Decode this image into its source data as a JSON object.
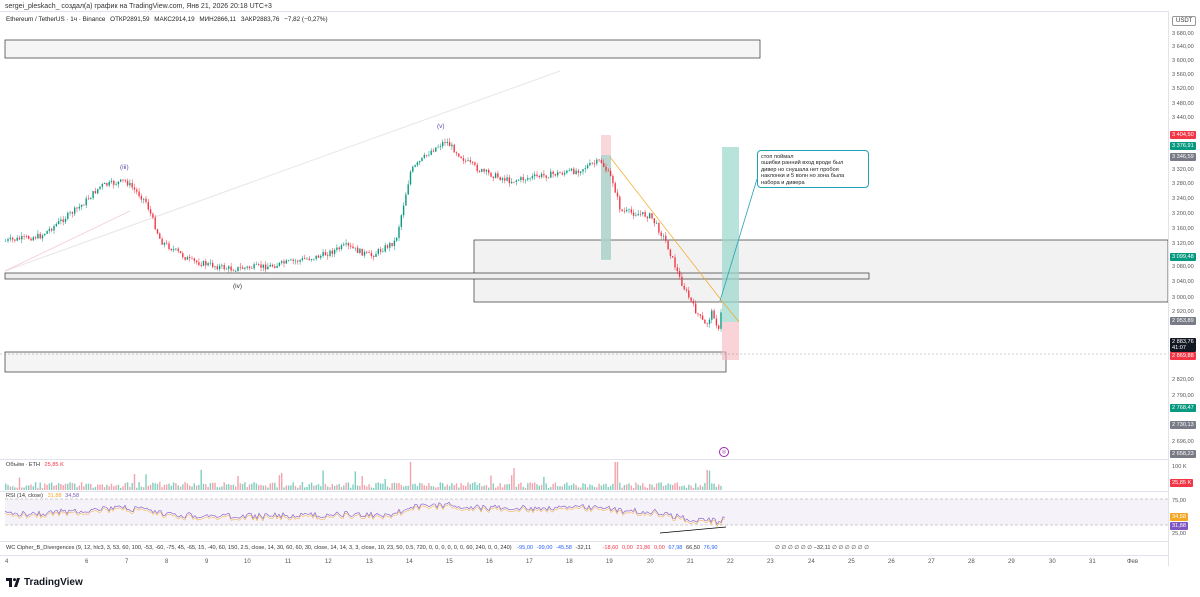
{
  "header": {
    "attribution": "sergei_pleskach_ создал(а) график на TradingView.com, Янв 21, 2026 20:18 UTC+3"
  },
  "symbol": {
    "name": "Ethereum / TetherUS · 1ч · Binance",
    "open": "ОТКР2891,59",
    "high": "МАКС2914,19",
    "low": "МИН2866,11",
    "close": "ЗАКР2883,76",
    "change": "−7,82 (−0,27%)"
  },
  "currency_button": "USDT",
  "price_axis": {
    "ticks": [
      "3 680,00",
      "3 640,00",
      "3 600,00",
      "3 560,00",
      "3 520,00",
      "3 480,00",
      "3 440,00",
      "3 320,00",
      "3 280,00",
      "3 240,00",
      "3 200,00",
      "3 160,00",
      "3 120,00",
      "3 080,00",
      "3 040,00",
      "3 000,00",
      "2 920,00",
      "2 820,00",
      "2 790,00",
      "2 696,00"
    ],
    "badges": {
      "b1": "3 404,50",
      "b2": "3 376,91",
      "b3": "3 346,59",
      "b4": "3 099,48",
      "b5": "2 953,89",
      "b6": "2 883,76",
      "b6b": "41:07",
      "b7": "2 869,88",
      "b8": "2 768,47",
      "b9": "2 730,13",
      "b10": "2 658,23",
      "vol": "25,85 K",
      "rsi_a": "34,58",
      "rsi_b": "31,88"
    },
    "vol_tick": "100 K",
    "rsi_ticks": [
      "75,00",
      "25,00"
    ]
  },
  "waves": {
    "iii": "(iii)",
    "iv": "(iv)",
    "v": "(v)"
  },
  "note": {
    "text": "стоп поймал\nошибки ранний вход вроде был\nдивер но снушала нет пробоя\nнаклонки и 5 волн но зона была\nнабора и дивера"
  },
  "volume": {
    "label": "Объём · ETH",
    "value": "25,85 K"
  },
  "rsi": {
    "label": "RSI (14, close)",
    "value_a": "31,88",
    "value_b": "34,58"
  },
  "wavetrend": {
    "label": "WC Cipher_B_Divergences (9, 12, hlc3, 3, 53, 60, 100, -53, -60, -75, 45, -65, 15, -40, 60, 150, 2.5, close, 14, 30, 60, 60, 30, close, 14, 14, 3, 3, close, 10, 23, 50, 0.5, 720, 0, 0, 0, 0, 0, 0, 60, 240, 0, 0, 240)",
    "v1": "-95,00",
    "v2": "-99,00",
    "v3": "-45,58",
    "v4": "-32,11",
    "v5": "-18,60",
    "v6": "0,00",
    "v7": "21,86",
    "v8": "0,00",
    "v9": "67,98",
    "v10": "66,50",
    "v11": "76,90",
    "tail": "∅ ∅ ∅ ∅ ∅ ∅ −32,11 ∅ ∅ ∅ ∅ ∅ ∅"
  },
  "time_axis": [
    "4",
    "6",
    "7",
    "8",
    "9",
    "10",
    "11",
    "12",
    "13",
    "14",
    "15",
    "16",
    "17",
    "18",
    "19",
    "20",
    "21",
    "22",
    "23",
    "24",
    "25",
    "26",
    "27",
    "28",
    "29",
    "30",
    "31",
    "Фев"
  ],
  "footer": {
    "brand": "TradingView"
  },
  "colors": {
    "up": "#089981",
    "down": "#f23645",
    "accent": "#2962ff",
    "rsi": "#7e57c2"
  }
}
